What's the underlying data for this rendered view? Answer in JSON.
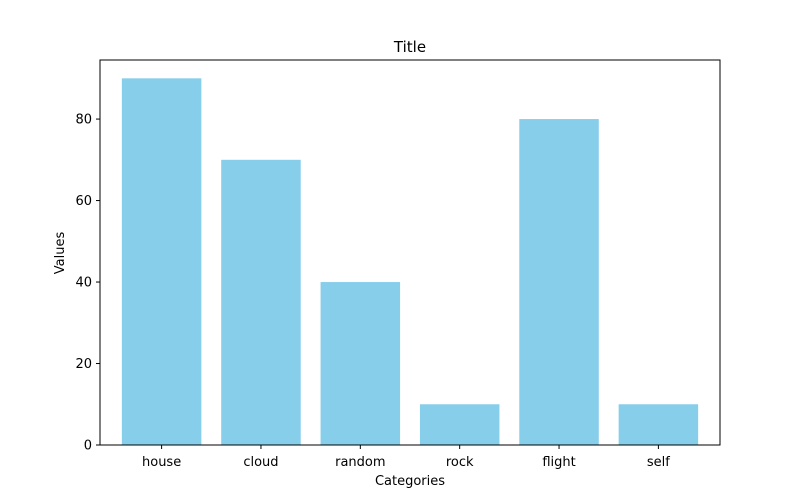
{
  "chart_data": {
    "type": "bar",
    "title": "Title",
    "xlabel": "Categories",
    "ylabel": "Values",
    "categories": [
      "house",
      "cloud",
      "random",
      "rock",
      "flight",
      "self"
    ],
    "values": [
      90,
      70,
      40,
      10,
      80,
      10
    ],
    "ylim": [
      0,
      94.5
    ],
    "yticks": [
      0,
      20,
      40,
      60,
      80
    ],
    "bar_color": "#87ceeb",
    "grid": false,
    "legend": "none"
  }
}
